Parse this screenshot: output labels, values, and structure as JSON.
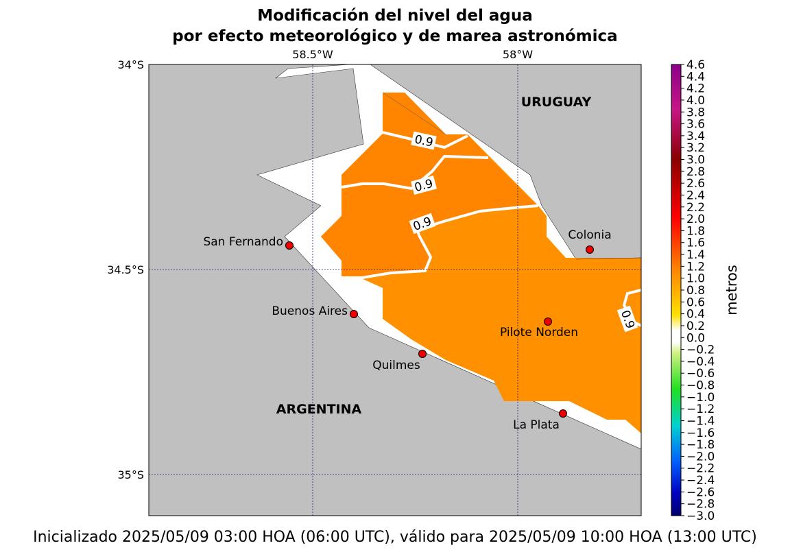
{
  "title": [
    "Modificación del nivel del agua",
    "por efecto meteorológico y de marea astronómica"
  ],
  "axes": {
    "lon_labels": [
      "58.5°W",
      "58°W"
    ],
    "lat_labels": [
      "34°S",
      "34.5°S",
      "35°S"
    ]
  },
  "places": [
    "San Fernando",
    "Buenos Aires",
    "Quilmes",
    "Pilote Norden",
    "Colonia",
    "La Plata"
  ],
  "countries": [
    "URUGUAY",
    "ARGENTINA"
  ],
  "contour_labels": [
    "0.9",
    "0.9",
    "0.9",
    "0.9"
  ],
  "colorbar": {
    "label": "metros",
    "ticks": [
      "4.6",
      "4.4",
      "4.2",
      "4.0",
      "3.8",
      "3.6",
      "3.4",
      "3.2",
      "3.0",
      "2.8",
      "2.6",
      "2.4",
      "2.2",
      "2.0",
      "1.8",
      "1.6",
      "1.4",
      "1.2",
      "1.0",
      "0.8",
      "0.6",
      "0.4",
      "0.2",
      "0.0",
      "−0.2",
      "−0.4",
      "−0.6",
      "−0.8",
      "−1.0",
      "−1.2",
      "−1.4",
      "−1.6",
      "−1.8",
      "−2.0",
      "−2.2",
      "−2.4",
      "−2.6",
      "−2.8",
      "−3.0"
    ]
  },
  "footer": "Inicializado 2025/05/09 03:00 HOA (06:00 UTC), válido para 2025/05/09 10:00 HOA (13:00 UTC)"
}
